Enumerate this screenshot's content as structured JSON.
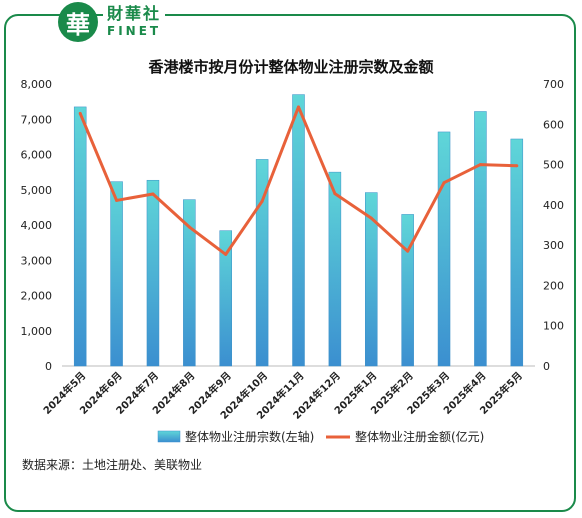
{
  "brand": {
    "badge_char": "華",
    "name_cn": "財華社",
    "name_en": "FINET"
  },
  "source_note": "数据来源：土地注册处、美联物业",
  "colors": {
    "bar_top": "#5fd6d8",
    "bar_bottom": "#3b8fd0",
    "line": "#e8613a",
    "frame": "#1a8a4a"
  },
  "chart_data": {
    "type": "bar",
    "title": "香港楼市按月份计整体物业注册宗数及金额",
    "categories": [
      "2024年5月",
      "2024年6月",
      "2024年7月",
      "2024年8月",
      "2024年9月",
      "2024年10月",
      "2024年11月",
      "2024年12月",
      "2025年1月",
      "2025年2月",
      "2025年3月",
      "2025年4月",
      "2025年5月"
    ],
    "series": [
      {
        "name": "整体物业注册宗数(左轴)",
        "type": "bar",
        "axis": "left",
        "values": [
          7350,
          5230,
          5270,
          4720,
          3840,
          5860,
          7700,
          5500,
          4920,
          4300,
          6640,
          7220,
          6440
        ]
      },
      {
        "name": "整体物业注册金额(亿元)",
        "type": "line",
        "axis": "right",
        "values": [
          627,
          411,
          427,
          345,
          277,
          409,
          643,
          428,
          367,
          285,
          455,
          500,
          497
        ]
      }
    ],
    "y_left": {
      "min": 0,
      "max": 8000,
      "ticks": [
        "0",
        "1,000",
        "2,000",
        "3,000",
        "4,000",
        "5,000",
        "6,000",
        "7,000",
        "8,000"
      ]
    },
    "y_right": {
      "min": 0,
      "max": 700,
      "ticks": [
        "0",
        "100",
        "200",
        "300",
        "400",
        "500",
        "600",
        "700"
      ]
    },
    "legend_position": "bottom",
    "grid": false
  }
}
